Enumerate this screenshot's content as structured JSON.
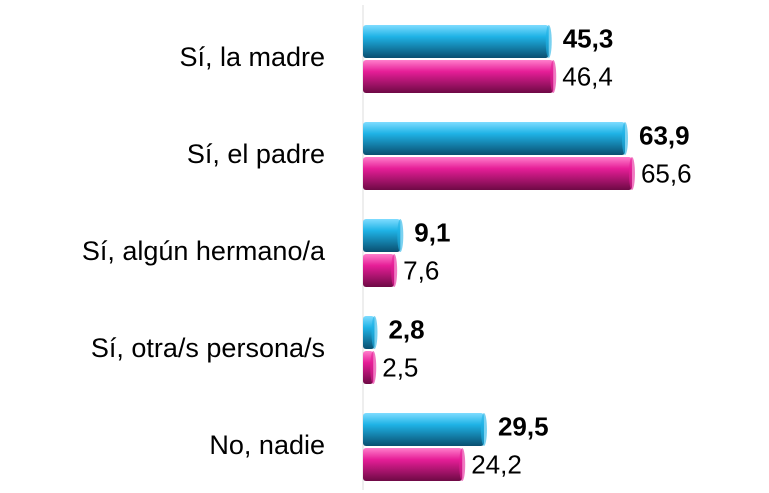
{
  "chart_data": {
    "type": "bar",
    "orientation": "horizontal",
    "categories": [
      "Sí, la madre",
      "Sí, el padre",
      "Sí, algún hermano/a",
      "Sí, otra/s persona/s",
      "No, nadie"
    ],
    "series": [
      {
        "color": "#1fb3e6",
        "values": [
          45.3,
          63.9,
          9.1,
          2.8,
          29.5
        ],
        "value_labels": [
          "45,3",
          "63,9",
          "9,1",
          "2,8",
          "29,5"
        ]
      },
      {
        "color": "#e61e97",
        "values": [
          46.4,
          65.6,
          7.6,
          2.5,
          24.2
        ],
        "value_labels": [
          "46,4",
          "65,6",
          "7,6",
          "2,5",
          "24,2"
        ]
      }
    ],
    "annotation": "ra"
  }
}
